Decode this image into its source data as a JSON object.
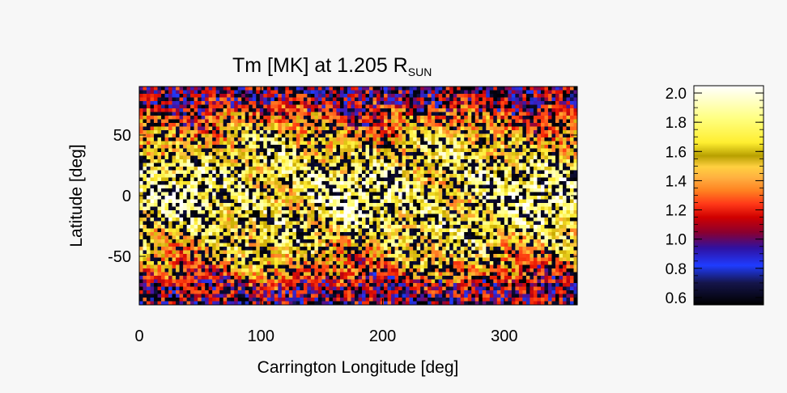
{
  "chart_data": [
    {
      "type": "heatmap",
      "title": "Tm [MK] at 1.205 R",
      "title_subscript": "SUN",
      "xlabel": "Carrington Longitude [deg]",
      "ylabel": "Latitude [deg]",
      "xlim": [
        0,
        360
      ],
      "ylim": [
        -90,
        90
      ],
      "x_ticks": [
        0,
        100,
        200,
        300
      ],
      "y_ticks": [
        -50,
        0,
        50
      ],
      "x_tick_labels": [
        "0",
        "100",
        "200",
        "300"
      ],
      "y_tick_labels": [
        "-50",
        "0",
        "50"
      ],
      "grid": false,
      "description_of_values": "Temperature map; high (1.6-2.0 MK, yellow/white) across mid and low latitudes, low (0.6-1.2 MK, black/blue/red) near the poles and in scattered patches."
    },
    {
      "type": "colorbar",
      "range": [
        0.55,
        2.05
      ],
      "ticks": [
        0.6,
        0.8,
        1.0,
        1.2,
        1.4,
        1.6,
        1.8,
        2.0
      ],
      "tick_labels": [
        "0.6",
        "0.8",
        "1.0",
        "1.2",
        "1.4",
        "1.6",
        "1.8",
        "2.0"
      ],
      "colors": [
        "#000000",
        "#1a1a80",
        "#1f3cff",
        "#5a10a0",
        "#c80000",
        "#ff3010",
        "#ff7020",
        "#ffa030",
        "#ffd040",
        "#b8a000",
        "#ffff40",
        "#ffffa0",
        "#ffffff"
      ]
    }
  ]
}
